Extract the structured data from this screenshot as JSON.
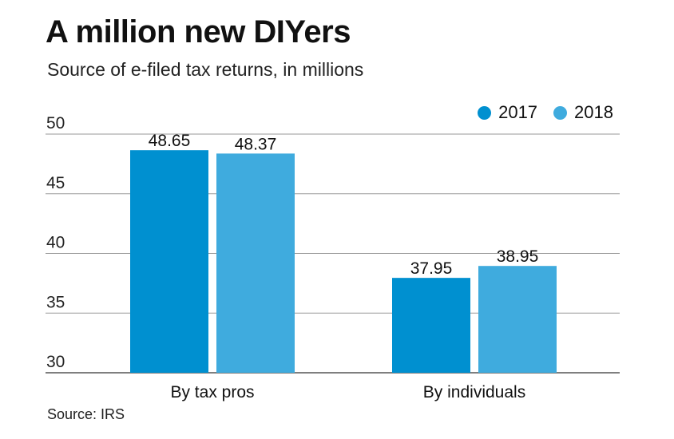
{
  "header": {
    "title": "A million new DIYers",
    "subtitle": "Source of e-filed tax returns, in millions"
  },
  "legend": {
    "items": [
      {
        "label": "2017",
        "color": "#0090d0"
      },
      {
        "label": "2018",
        "color": "#3fabde"
      }
    ]
  },
  "footer": {
    "source": "Source: IRS"
  },
  "chart_data": {
    "type": "bar",
    "title": "A million new DIYers",
    "subtitle": "Source of e-filed tax returns, in millions",
    "xlabel": "",
    "ylabel": "",
    "categories": [
      "By tax pros",
      "By individuals"
    ],
    "series": [
      {
        "name": "2017",
        "values": [
          48.65,
          37.95
        ],
        "color": "#0090d0"
      },
      {
        "name": "2018",
        "values": [
          48.37,
          38.95
        ],
        "color": "#3fabde"
      }
    ],
    "ylim": [
      30,
      50
    ],
    "yticks": [
      30,
      35,
      40,
      45,
      50
    ],
    "value_labels": [
      [
        "48.65",
        "37.95"
      ],
      [
        "48.37",
        "38.95"
      ]
    ],
    "grid": true,
    "legend_position": "top-right"
  }
}
